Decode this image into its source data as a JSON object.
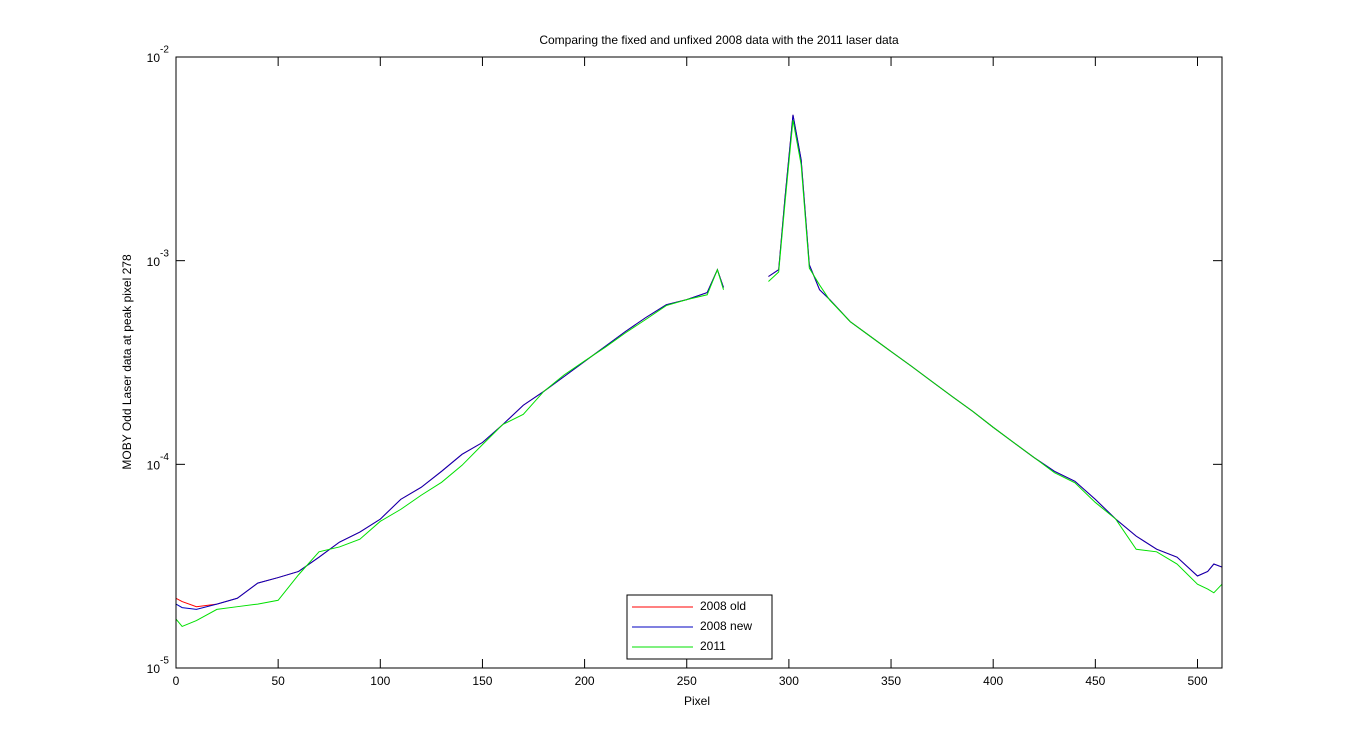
{
  "chart_data": {
    "type": "line",
    "title": "Comparing the fixed and unfixed 2008 data with the 2011 laser data",
    "x_label": "Pixel",
    "y_label": "MOBY Odd Laser data at peak pixel 278",
    "log_y": true,
    "legend_position": "bottom",
    "xlim": [
      0,
      512
    ],
    "ylim": [
      1e-05,
      0.01
    ],
    "xticks": [
      0,
      50,
      100,
      150,
      200,
      250,
      300,
      350,
      400,
      450,
      500
    ],
    "yticks": [
      {
        "value": 1e-05,
        "label": "10",
        "exponent": "-5"
      },
      {
        "value": 0.0001,
        "label": "10",
        "exponent": "-4"
      },
      {
        "value": 0.001,
        "label": "10",
        "exponent": "-3"
      },
      {
        "value": 0.01,
        "label": "10",
        "exponent": "-2"
      }
    ],
    "x": [
      0,
      3,
      10,
      20,
      30,
      40,
      50,
      60,
      70,
      80,
      90,
      100,
      110,
      120,
      130,
      140,
      150,
      160,
      170,
      180,
      190,
      200,
      210,
      220,
      230,
      240,
      250,
      260,
      265,
      268,
      278,
      290,
      295,
      298,
      302,
      306,
      310,
      315,
      320,
      330,
      340,
      350,
      360,
      370,
      380,
      390,
      400,
      410,
      420,
      430,
      440,
      450,
      460,
      470,
      480,
      490,
      500,
      505,
      508,
      512
    ],
    "series": [
      {
        "name": "2008 old",
        "color": "#ff0000",
        "values": [
          2.2e-05,
          2.12e-05,
          2e-05,
          2.06e-05,
          2.2e-05,
          2.61e-05,
          2.78e-05,
          2.98e-05,
          3.5e-05,
          4.15e-05,
          4.65e-05,
          5.38e-05,
          6.73e-05,
          7.71e-05,
          9.24e-05,
          0.000112,
          0.000128,
          0.000157,
          0.000195,
          0.000228,
          0.00027,
          0.00032,
          0.000379,
          0.000449,
          0.000526,
          0.000608,
          0.000644,
          0.000697,
          0.000903,
          0.000738,
          null,
          0.000836,
          0.000903,
          0.00199,
          0.0052,
          0.00313,
          0.000955,
          0.00072,
          0.000644,
          0.000502,
          0.000424,
          0.000358,
          0.000303,
          0.000255,
          0.000215,
          0.000182,
          0.000152,
          0.000128,
          0.000108,
          9.24e-05,
          8.26e-05,
          6.73e-05,
          5.38e-05,
          4.44e-05,
          3.83e-05,
          3.5e-05,
          2.83e-05,
          2.98e-05,
          3.24e-05,
          3.13e-05
        ]
      },
      {
        "name": "2008 new",
        "color": "#0000c0",
        "values": [
          2.06e-05,
          1.98e-05,
          1.94e-05,
          2.06e-05,
          2.2e-05,
          2.61e-05,
          2.78e-05,
          2.98e-05,
          3.5e-05,
          4.15e-05,
          4.65e-05,
          5.38e-05,
          6.73e-05,
          7.71e-05,
          9.24e-05,
          0.000112,
          0.000128,
          0.000157,
          0.000195,
          0.000228,
          0.00027,
          0.00032,
          0.000379,
          0.000449,
          0.000526,
          0.000608,
          0.000644,
          0.000697,
          0.000903,
          0.000738,
          null,
          0.000836,
          0.000903,
          0.00199,
          0.0052,
          0.00313,
          0.000955,
          0.00072,
          0.000644,
          0.000502,
          0.000424,
          0.000358,
          0.000303,
          0.000255,
          0.000215,
          0.000182,
          0.000152,
          0.000128,
          0.000108,
          9.24e-05,
          8.26e-05,
          6.73e-05,
          5.38e-05,
          4.44e-05,
          3.83e-05,
          3.5e-05,
          2.83e-05,
          2.98e-05,
          3.24e-05,
          3.13e-05
        ]
      },
      {
        "name": "2011",
        "color": "#00e000",
        "values": [
          1.74e-05,
          1.6e-05,
          1.71e-05,
          1.94e-05,
          2e-05,
          2.06e-05,
          2.15e-05,
          2.87e-05,
          3.72e-05,
          3.93e-05,
          4.29e-05,
          5.25e-05,
          6.01e-05,
          7.05e-05,
          8.16e-05,
          9.89e-05,
          0.000125,
          0.000157,
          0.000176,
          0.000228,
          0.000275,
          0.000322,
          0.000375,
          0.000442,
          0.000515,
          0.000602,
          0.000644,
          0.00068,
          0.000903,
          0.00072,
          null,
          0.00079,
          0.00088,
          0.00188,
          0.0049,
          0.00296,
          0.00092,
          0.00076,
          0.00064,
          0.000502,
          0.000424,
          0.000358,
          0.000303,
          0.000255,
          0.000215,
          0.000182,
          0.000152,
          0.000128,
          0.000108,
          9.1e-05,
          8.12e-05,
          6.5e-05,
          5.38e-05,
          3.83e-05,
          3.72e-05,
          3.24e-05,
          2.58e-05,
          2.44e-05,
          2.34e-05,
          2.58e-05
        ]
      }
    ]
  }
}
